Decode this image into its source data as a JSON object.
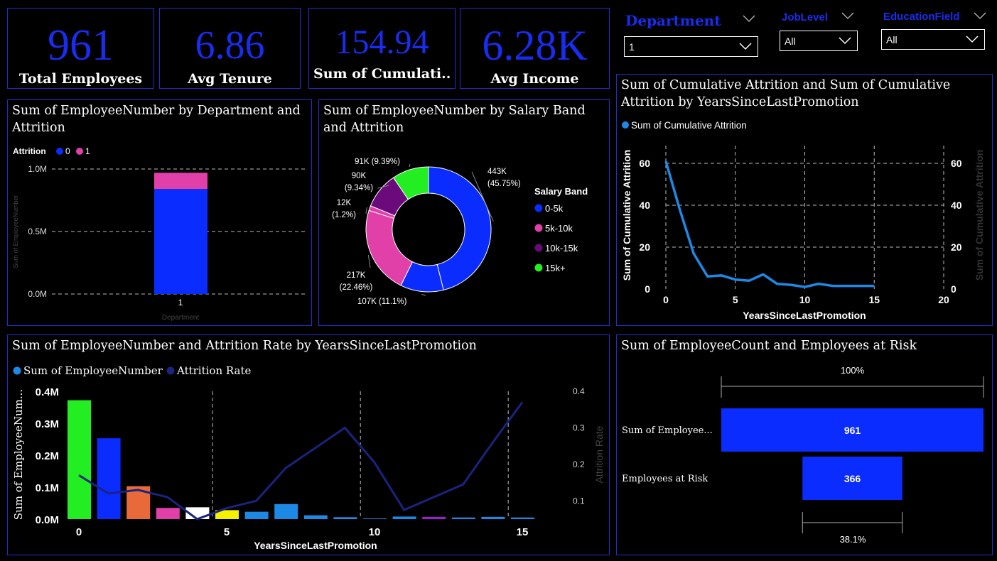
{
  "kpis": [
    {
      "value": "961",
      "label": "Total Employees"
    },
    {
      "value": "6.86",
      "label": "Avg Tenure"
    },
    {
      "value": "154.94",
      "label": "Sum of Cumulati..."
    },
    {
      "value": "6.28K",
      "label": "Avg Income"
    }
  ],
  "slicers": {
    "department": {
      "title": "Department",
      "value": "1"
    },
    "joblevel": {
      "title": "JobLevel",
      "value": "All"
    },
    "education": {
      "title": "EducationField",
      "value": "All"
    }
  },
  "colors": {
    "accent": "#1a2cf0",
    "blue": "#0a2cff",
    "pink": "#e040a8",
    "purple": "#6b0a7a",
    "green": "#22ee22",
    "line": "#1e88e5",
    "navy": "#1a237e"
  },
  "chart_data": [
    {
      "id": "dept_attrition",
      "type": "bar",
      "title": "Sum of EmployeeNumber by Department and Attrition",
      "legend_title": "Attrition",
      "categories": [
        "1"
      ],
      "series": [
        {
          "name": "0",
          "values": [
            0.84
          ]
        },
        {
          "name": "1",
          "values": [
            0.13
          ]
        }
      ],
      "xlabel": "Department",
      "ylabel": "Sum of EmployeeNumber",
      "yticks": [
        "0.0M",
        "0.5M",
        "1.0M"
      ],
      "ylim": [
        0,
        1.0
      ]
    },
    {
      "id": "salary_band",
      "type": "pie",
      "title": "Sum of EmployeeNumber by Salary Band and Attrition",
      "legend_title": "Salary Band",
      "legend": [
        "0-5k",
        "5k-10k",
        "10k-15k",
        "15k+"
      ],
      "slices": [
        {
          "band": "0-5k",
          "color": "#0a2cff",
          "value": 443,
          "l1": "443K",
          "l2": "(45.75%)"
        },
        {
          "band": "0-5k",
          "color": "#0a2cff",
          "value": 107,
          "l1": "107K (11.1%)",
          "l2": ""
        },
        {
          "band": "5k-10k",
          "color": "#e040a8",
          "value": 217,
          "l1": "217K",
          "l2": "(22.46%)"
        },
        {
          "band": "5k-10k",
          "color": "#e040a8",
          "value": 12,
          "l1": "12K",
          "l2": "(1.2%)"
        },
        {
          "band": "10k-15k",
          "color": "#6b0a7a",
          "value": 90,
          "l1": "90K",
          "l2": "(9.34%)"
        },
        {
          "band": "15k+",
          "color": "#22ee22",
          "value": 91,
          "l1": "91K (9.39%)",
          "l2": ""
        }
      ]
    },
    {
      "id": "cum_attrition",
      "type": "line",
      "title": "Sum of Cumulative Attrition and Sum of Cumulative Attrition by YearsSinceLastPromotion",
      "series_name": "Sum of Cumulative Attrition",
      "x": [
        0,
        1,
        2,
        3,
        4,
        5,
        6,
        7,
        8,
        9,
        10,
        11,
        12,
        13,
        14,
        15
      ],
      "y": [
        61,
        38,
        17,
        6,
        6.5,
        4.5,
        4,
        7,
        2.5,
        2,
        1,
        2.5,
        1.5,
        1.5,
        1.5,
        1.5
      ],
      "xlim": [
        0,
        20
      ],
      "ylim": [
        0,
        60
      ],
      "xticks": [
        0,
        5,
        10,
        15,
        20
      ],
      "yticks": [
        0,
        20,
        40,
        60
      ],
      "xlabel": "YearsSinceLastPromotion",
      "ylabel": "Sum of Cumulative Attrition",
      "y2label": "Sum of Cumulative Attrition"
    },
    {
      "id": "promo_bar_line",
      "type": "bar",
      "title": "Sum of EmployeeNumber and Attrition Rate by YearsSinceLastPromotion",
      "legend": [
        "Sum of EmployeeNumber",
        "Attrition Rate"
      ],
      "x": [
        0,
        1,
        2,
        3,
        4,
        5,
        6,
        7,
        8,
        9,
        10,
        11,
        12,
        13,
        14,
        15
      ],
      "bars": [
        0.372,
        0.253,
        0.103,
        0.035,
        0.037,
        0.028,
        0.023,
        0.047,
        0.012,
        0.006,
        0.002,
        0.008,
        0.007,
        0.005,
        0.007,
        0.005
      ],
      "bar_colors": [
        "#22ee22",
        "#0a2cff",
        "#e86a3a",
        "#e040a8",
        "#ffffff",
        "#f5f000",
        "#1e88e5",
        "#1e88e5",
        "#1e88e5",
        "#1e88e5",
        "#1e88e5",
        "#1e88e5",
        "#9b1fd0",
        "#1e88e5",
        "#1e88e5",
        "#1e88e5"
      ],
      "rate": [
        0.17,
        0.12,
        0.13,
        0.11,
        0.05,
        0.08,
        0.1,
        0.19,
        0.245,
        0.3,
        0.205,
        0.075,
        0.11,
        0.145,
        0.26,
        0.37
      ],
      "ylim": [
        0,
        0.4
      ],
      "y2lim": [
        0.05,
        0.4
      ],
      "yticks": [
        "0.0M",
        "0.1M",
        "0.2M",
        "0.3M",
        "0.4M"
      ],
      "y2ticks": [
        "0.1",
        "0.2",
        "0.3",
        "0.4"
      ],
      "xticks": [
        0,
        5,
        10,
        15
      ],
      "xlabel": "YearsSinceLastPromotion",
      "ylabel": "Sum of EmployeeNum...",
      "y2label": "Attrition Rate"
    },
    {
      "id": "risk_funnel",
      "type": "bar",
      "title": "Sum of EmployeeCount and Employees at Risk",
      "rows": [
        {
          "label": "Sum of Employee...",
          "value": 961
        },
        {
          "label": "Employees at Risk",
          "value": 366
        }
      ],
      "top_pct": "100%",
      "bottom_pct": "38.1%"
    }
  ]
}
